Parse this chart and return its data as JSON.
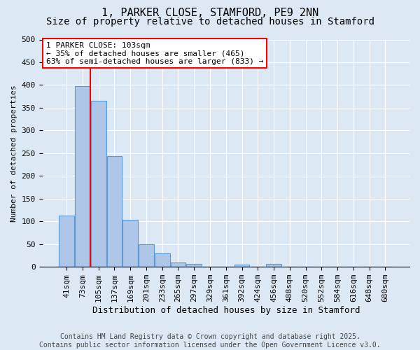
{
  "title": "1, PARKER CLOSE, STAMFORD, PE9 2NN",
  "subtitle": "Size of property relative to detached houses in Stamford",
  "xlabel": "Distribution of detached houses by size in Stamford",
  "ylabel": "Number of detached properties",
  "categories": [
    "41sqm",
    "73sqm",
    "105sqm",
    "137sqm",
    "169sqm",
    "201sqm",
    "233sqm",
    "265sqm",
    "297sqm",
    "329sqm",
    "361sqm",
    "392sqm",
    "424sqm",
    "456sqm",
    "488sqm",
    "520sqm",
    "552sqm",
    "584sqm",
    "616sqm",
    "648sqm",
    "680sqm"
  ],
  "values": [
    113,
    397,
    365,
    243,
    104,
    50,
    29,
    9,
    7,
    1,
    0,
    5,
    0,
    7,
    0,
    1,
    0,
    0,
    0,
    1,
    0
  ],
  "bar_color": "#aec6e8",
  "bar_edge_color": "#5b9bd5",
  "vline_x_index": 2,
  "vline_color": "red",
  "annotation_text": "1 PARKER CLOSE: 103sqm\n← 35% of detached houses are smaller (465)\n63% of semi-detached houses are larger (833) →",
  "annotation_box_color": "white",
  "annotation_box_edge_color": "red",
  "bg_color": "#dce9f5",
  "plot_bg_color": "#dce9f5",
  "ylim": [
    0,
    500
  ],
  "yticks": [
    0,
    50,
    100,
    150,
    200,
    250,
    300,
    350,
    400,
    450,
    500
  ],
  "footer": "Contains HM Land Registry data © Crown copyright and database right 2025.\nContains public sector information licensed under the Open Government Licence v3.0.",
  "title_fontsize": 11,
  "subtitle_fontsize": 10,
  "xlabel_fontsize": 9,
  "ylabel_fontsize": 8,
  "tick_fontsize": 8,
  "annotation_fontsize": 8,
  "footer_fontsize": 7
}
